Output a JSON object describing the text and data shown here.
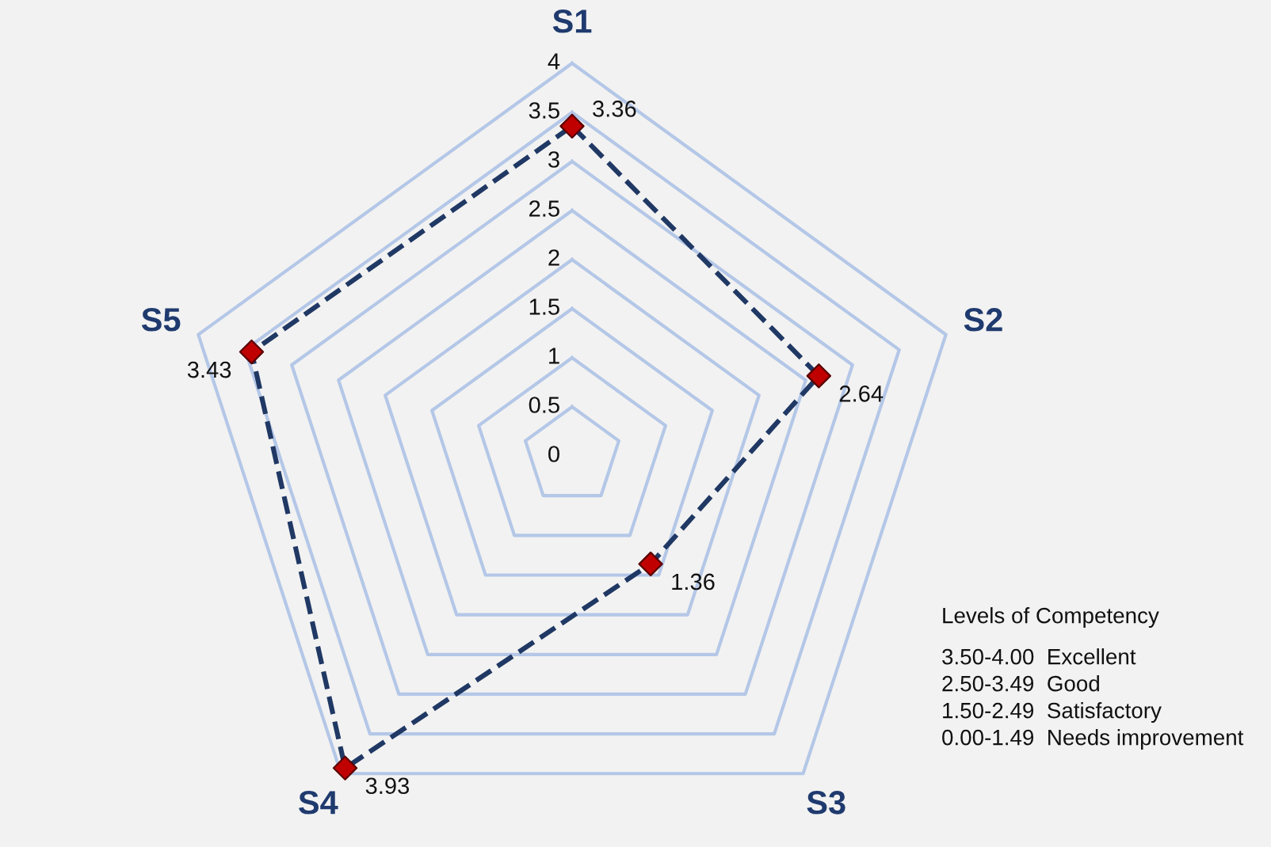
{
  "chart_data": {
    "type": "radar",
    "categories": [
      "S1",
      "S2",
      "S3",
      "S4",
      "S5"
    ],
    "series": [
      {
        "color": "#203864",
        "values": [
          3.36,
          2.64,
          1.36,
          3.93,
          3.43
        ]
      }
    ],
    "ylim": [
      0,
      4
    ],
    "yticks": [
      0,
      0.5,
      1,
      1.5,
      2,
      2.5,
      3,
      3.5,
      4
    ],
    "data_labels": true,
    "marker": "diamond",
    "line_style": "dashed",
    "grid": true,
    "annotations": [
      "Levels of Competency",
      "3.50-4.00  Excellent",
      "2.50-3.49  Good",
      "1.50-2.49  Satisfactory",
      "0.00-1.49  Needs improvement"
    ]
  }
}
